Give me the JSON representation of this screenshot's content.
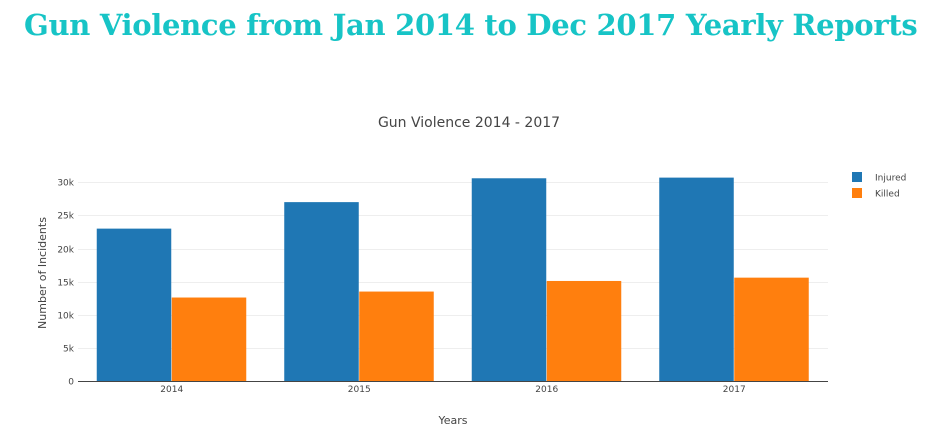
{
  "page": {
    "heading": "Gun Violence from Jan 2014 to Dec 2017 Yearly Reports"
  },
  "chart_data": {
    "type": "bar",
    "title": "Gun Violence 2014 - 2017",
    "xlabel": "Years",
    "ylabel": "Number of Incidents",
    "categories": [
      "2014",
      "2015",
      "2016",
      "2017"
    ],
    "series": [
      {
        "name": "Injured",
        "color": "#1f77b4",
        "values": [
          23000,
          27000,
          30600,
          30700
        ]
      },
      {
        "name": "Killed",
        "color": "#ff7f0e",
        "values": [
          12600,
          13500,
          15100,
          15600
        ]
      }
    ],
    "ylim": [
      0,
      32000
    ],
    "yticks": [
      {
        "value": 0,
        "label": "0"
      },
      {
        "value": 5000,
        "label": "5k"
      },
      {
        "value": 10000,
        "label": "10k"
      },
      {
        "value": 15000,
        "label": "15k"
      },
      {
        "value": 20000,
        "label": "20k"
      },
      {
        "value": 25000,
        "label": "25k"
      },
      {
        "value": 30000,
        "label": "30k"
      }
    ],
    "grid": true,
    "legend_position": "top-right"
  }
}
